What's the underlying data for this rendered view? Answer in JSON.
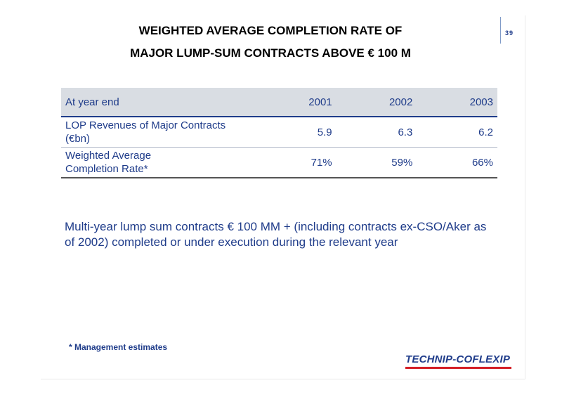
{
  "page_number": "39",
  "title": {
    "line1": "WEIGHTED AVERAGE COMPLETION RATE OF",
    "line2": "MAJOR LUMP-SUM CONTRACTS ABOVE € 100 M"
  },
  "table": {
    "header": {
      "label": "At year end",
      "years": [
        "2001",
        "2002",
        "2003"
      ]
    },
    "rows": [
      {
        "label_line1": "LOP Revenues of Major Contracts",
        "label_line2": "(€bn)",
        "values": [
          "5.9",
          "6.3",
          "6.2"
        ]
      },
      {
        "label_line1": "Weighted Average",
        "label_line2": "Completion Rate*",
        "values": [
          "71%",
          "59%",
          "66%"
        ]
      }
    ]
  },
  "note": "Multi-year lump sum contracts € 100 MM + (including contracts ex-CSO/Aker as of 2002) completed or under execution during the relevant year",
  "footnote": "* Management estimates",
  "logo_text": "TECHNIP-COFLEXIP",
  "colors": {
    "text_blue": "#1f3c8a",
    "header_bg": "#d9dde3",
    "logo_red": "#d41f26"
  }
}
